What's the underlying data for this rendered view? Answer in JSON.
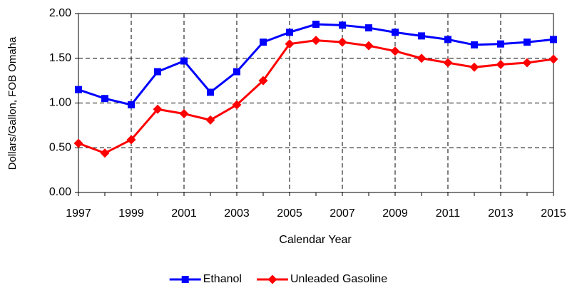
{
  "chart_data": {
    "type": "line",
    "xlabel": "Calendar Year",
    "ylabel": "Dollars/Gallon,  FOB Omaha",
    "x": [
      1997,
      1998,
      1999,
      2000,
      2001,
      2002,
      2003,
      2004,
      2005,
      2006,
      2007,
      2008,
      2009,
      2010,
      2011,
      2012,
      2013,
      2014,
      2015
    ],
    "series": [
      {
        "name": "Ethanol",
        "color": "#0000ff",
        "marker": "square",
        "values": [
          1.15,
          1.05,
          0.98,
          1.35,
          1.47,
          1.12,
          1.35,
          1.68,
          1.79,
          1.88,
          1.87,
          1.84,
          1.79,
          1.75,
          1.71,
          1.65,
          1.66,
          1.68,
          1.71
        ]
      },
      {
        "name": "Unleaded Gasoline",
        "color": "#ff0000",
        "marker": "diamond",
        "values": [
          0.55,
          0.44,
          0.59,
          0.93,
          0.88,
          0.81,
          0.98,
          1.25,
          1.66,
          1.7,
          1.68,
          1.64,
          1.58,
          1.5,
          1.45,
          1.4,
          1.43,
          1.45,
          1.49
        ]
      }
    ],
    "xlim": [
      1997,
      2015
    ],
    "xticks": [
      1997,
      1999,
      2001,
      2003,
      2005,
      2007,
      2009,
      2011,
      2013,
      2015
    ],
    "ylim": [
      0,
      2
    ],
    "yticks": [
      {
        "value": 0,
        "label": "0.00"
      },
      {
        "value": 0.5,
        "label": "0.50"
      },
      {
        "value": 1,
        "label": "1.00"
      },
      {
        "value": 1.5,
        "label": "1.50"
      },
      {
        "value": 2,
        "label": "2.00"
      }
    ],
    "grid": true,
    "legend": "bottom"
  }
}
